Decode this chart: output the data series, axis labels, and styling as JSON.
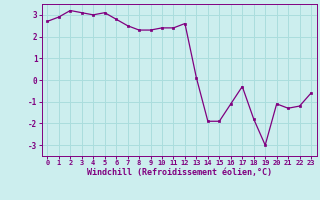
{
  "x": [
    0,
    1,
    2,
    3,
    4,
    5,
    6,
    7,
    8,
    9,
    10,
    11,
    12,
    13,
    14,
    15,
    16,
    17,
    18,
    19,
    20,
    21,
    22,
    23
  ],
  "y": [
    2.7,
    2.9,
    3.2,
    3.1,
    3.0,
    3.1,
    2.8,
    2.5,
    2.3,
    2.3,
    2.4,
    2.4,
    2.6,
    0.1,
    -1.9,
    -1.9,
    -1.1,
    -0.3,
    -1.8,
    -3.0,
    -1.1,
    -1.3,
    -1.2,
    -0.6
  ],
  "line_color": "#800080",
  "marker_color": "#800080",
  "bg_color": "#cceeee",
  "grid_color": "#aadddd",
  "xlabel": "Windchill (Refroidissement éolien,°C)",
  "ylim": [
    -3.5,
    3.5
  ],
  "xlim": [
    -0.5,
    23.5
  ],
  "yticks": [
    -3,
    -2,
    -1,
    0,
    1,
    2,
    3
  ],
  "xticks": [
    0,
    1,
    2,
    3,
    4,
    5,
    6,
    7,
    8,
    9,
    10,
    11,
    12,
    13,
    14,
    15,
    16,
    17,
    18,
    19,
    20,
    21,
    22,
    23
  ],
  "tick_color": "#800080",
  "label_color": "#800080",
  "font_family": "monospace"
}
